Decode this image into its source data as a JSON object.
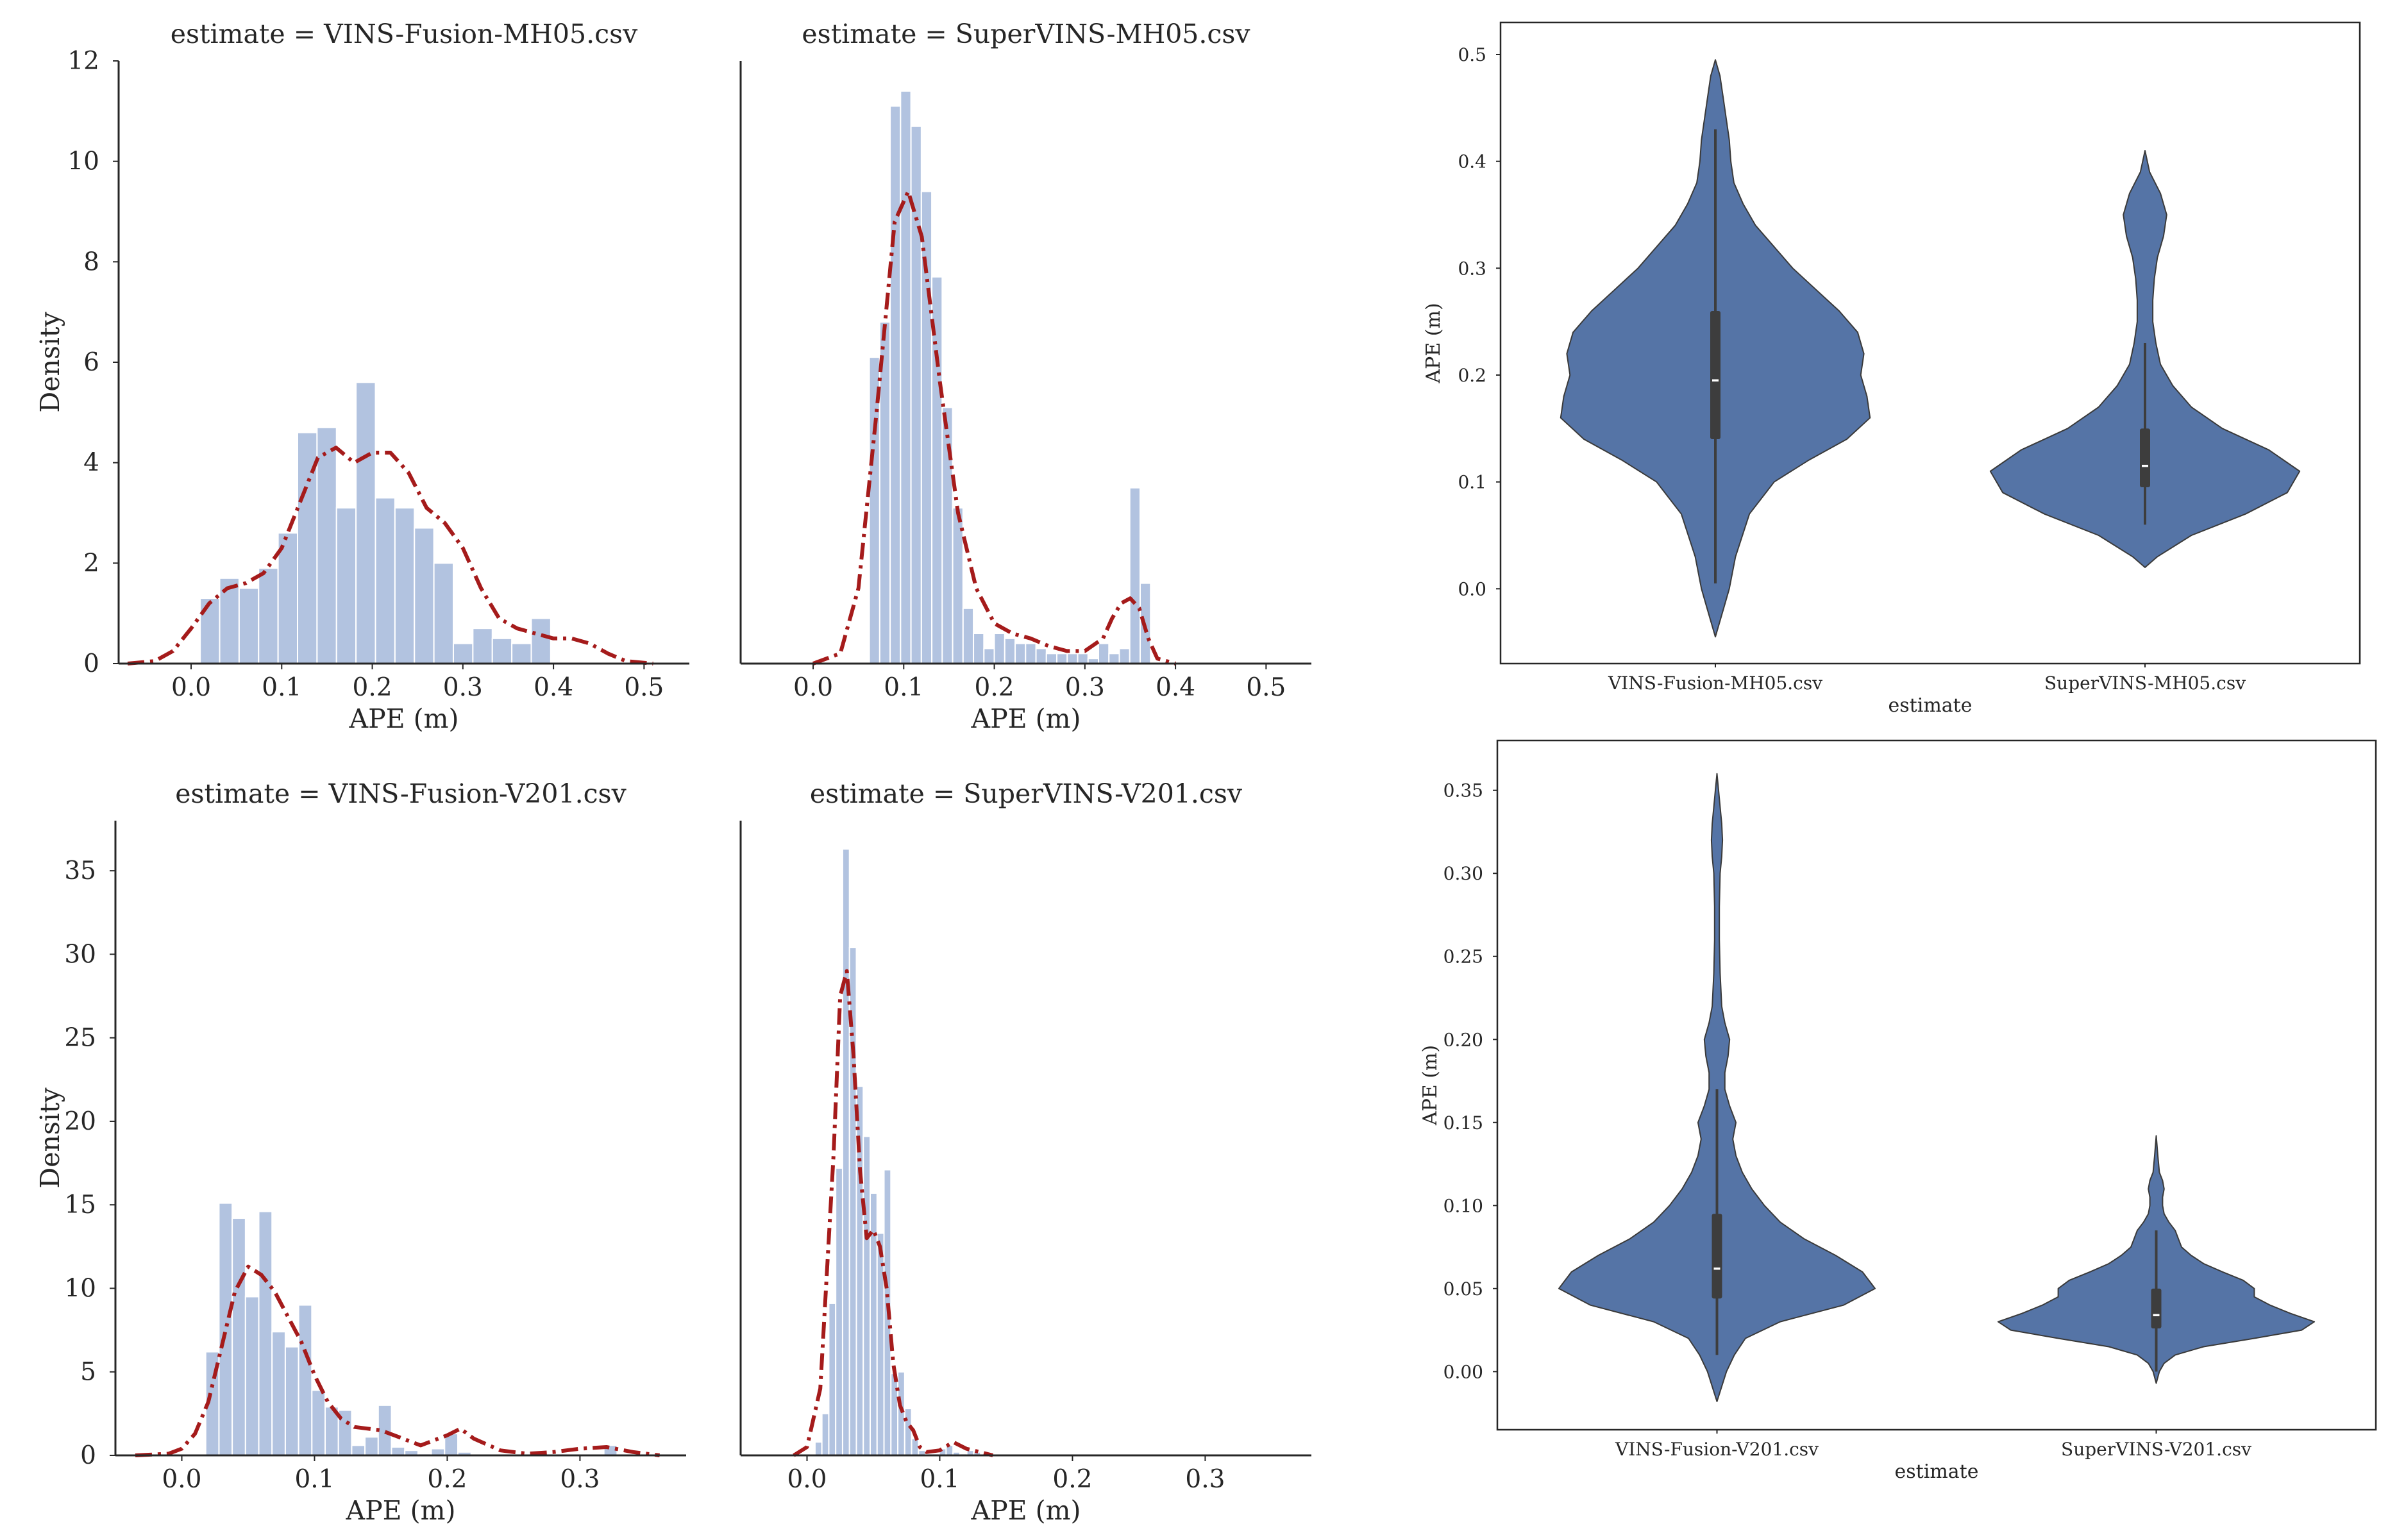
{
  "colors": {
    "hist_fill": "#b2c3e0",
    "hist_stroke": "#ffffff",
    "kde_line": "#a51b1b",
    "violin_fill": "#5574a6",
    "violin_edge": "#3a3a3a",
    "box": "#3d3d3d",
    "median": "#ffffff",
    "axis": "#262626"
  },
  "chart_data": [
    {
      "id": "hist-vins-mh05",
      "type": "bar",
      "subtype": "histogram-kde",
      "title": "estimate = VINS-Fusion-MH05.csv",
      "xlabel": "APE (m)",
      "ylabel": "Density",
      "xlim": [
        -0.08,
        0.55
      ],
      "ylim": [
        0,
        12
      ],
      "xticks": [
        0.0,
        0.1,
        0.2,
        0.3,
        0.4,
        0.5
      ],
      "xtick_labels": [
        "0.0",
        "0.1",
        "0.2",
        "0.3",
        "0.4",
        "0.5"
      ],
      "yticks": [
        0,
        2,
        4,
        6,
        8,
        10,
        12
      ],
      "ytick_labels": [
        "0",
        "2",
        "4",
        "6",
        "8",
        "10",
        "12"
      ],
      "bins": {
        "edges": [
          0.01,
          0.0315,
          0.053,
          0.0745,
          0.096,
          0.1175,
          0.139,
          0.1605,
          0.182,
          0.2035,
          0.225,
          0.2465,
          0.268,
          0.2895,
          0.311,
          0.3325,
          0.354,
          0.3755,
          0.397,
          0.4185,
          0.44,
          0.4615
        ],
        "heights": [
          1.3,
          1.7,
          1.5,
          1.9,
          2.6,
          4.6,
          4.7,
          3.1,
          5.6,
          3.3,
          3.1,
          2.7,
          2.0,
          0.4,
          0.7,
          0.5,
          0.4,
          0.9,
          0.0,
          0.0,
          0.0
        ]
      },
      "kde": {
        "x": [
          -0.07,
          -0.04,
          -0.02,
          0.0,
          0.02,
          0.04,
          0.06,
          0.08,
          0.1,
          0.12,
          0.14,
          0.16,
          0.18,
          0.2,
          0.22,
          0.24,
          0.26,
          0.28,
          0.3,
          0.32,
          0.34,
          0.36,
          0.38,
          0.4,
          0.42,
          0.44,
          0.46,
          0.48,
          0.51
        ],
        "y": [
          0.0,
          0.05,
          0.25,
          0.7,
          1.2,
          1.5,
          1.6,
          1.8,
          2.3,
          3.2,
          4.1,
          4.3,
          4.0,
          4.2,
          4.2,
          3.8,
          3.1,
          2.8,
          2.3,
          1.5,
          0.9,
          0.7,
          0.6,
          0.5,
          0.5,
          0.4,
          0.2,
          0.05,
          0.0
        ]
      }
    },
    {
      "id": "hist-supervins-mh05",
      "type": "bar",
      "subtype": "histogram-kde",
      "title": "estimate = SuperVINS-MH05.csv",
      "xlabel": "APE (m)",
      "ylabel": "",
      "xlim": [
        -0.08,
        0.55
      ],
      "ylim": [
        0,
        12
      ],
      "xticks": [
        0.0,
        0.1,
        0.2,
        0.3,
        0.4,
        0.5
      ],
      "xtick_labels": [
        "0.0",
        "0.1",
        "0.2",
        "0.3",
        "0.4",
        "0.5"
      ],
      "yticks": [],
      "ytick_labels": [],
      "bins": {
        "edges": [
          0.062,
          0.0735,
          0.085,
          0.0965,
          0.108,
          0.1195,
          0.131,
          0.1425,
          0.154,
          0.1655,
          0.177,
          0.1885,
          0.2,
          0.2115,
          0.223,
          0.2345,
          0.246,
          0.2575,
          0.269,
          0.2805,
          0.292,
          0.3035,
          0.315,
          0.3265,
          0.338,
          0.3495,
          0.361,
          0.3725
        ],
        "heights": [
          6.1,
          6.8,
          11.1,
          11.4,
          10.7,
          9.4,
          7.7,
          5.1,
          3.1,
          1.1,
          0.6,
          0.3,
          0.6,
          0.5,
          0.4,
          0.4,
          0.3,
          0.2,
          0.2,
          0.2,
          0.2,
          0.1,
          0.4,
          0.2,
          0.3,
          3.5,
          1.6
        ]
      },
      "kde": {
        "x": [
          0.0,
          0.03,
          0.05,
          0.07,
          0.09,
          0.105,
          0.12,
          0.14,
          0.16,
          0.18,
          0.2,
          0.22,
          0.24,
          0.26,
          0.28,
          0.3,
          0.32,
          0.33,
          0.34,
          0.35,
          0.36,
          0.37,
          0.38,
          0.4
        ],
        "y": [
          0.0,
          0.2,
          1.5,
          5.0,
          8.8,
          9.4,
          8.5,
          5.6,
          3.0,
          1.5,
          0.8,
          0.6,
          0.5,
          0.35,
          0.25,
          0.25,
          0.5,
          0.9,
          1.2,
          1.3,
          1.1,
          0.5,
          0.1,
          0.0
        ]
      }
    },
    {
      "id": "violin-mh05",
      "type": "violin",
      "title": "",
      "xlabel": "estimate",
      "ylabel": "APE (m)",
      "ylim": [
        -0.07,
        0.53
      ],
      "yticks": [
        0.0,
        0.1,
        0.2,
        0.3,
        0.4,
        0.5
      ],
      "ytick_labels": [
        "0.0",
        "0.1",
        "0.2",
        "0.3",
        "0.4",
        "0.5"
      ],
      "categories": [
        "VINS-Fusion-MH05.csv",
        "SuperVINS-MH05.csv"
      ],
      "violins": [
        {
          "name": "VINS-Fusion-MH05.csv",
          "y": [
            -0.045,
            -0.02,
            0.0,
            0.03,
            0.07,
            0.1,
            0.12,
            0.14,
            0.16,
            0.18,
            0.2,
            0.22,
            0.24,
            0.26,
            0.28,
            0.3,
            0.32,
            0.34,
            0.36,
            0.38,
            0.4,
            0.42,
            0.44,
            0.46,
            0.48,
            0.495
          ],
          "w": [
            0.0,
            0.05,
            0.09,
            0.13,
            0.22,
            0.38,
            0.6,
            0.85,
            1.0,
            0.98,
            0.94,
            0.96,
            0.92,
            0.8,
            0.65,
            0.5,
            0.38,
            0.26,
            0.18,
            0.12,
            0.1,
            0.09,
            0.07,
            0.05,
            0.03,
            0.0
          ]
        },
        {
          "name": "SuperVINS-MH05.csv",
          "y": [
            0.02,
            0.03,
            0.05,
            0.07,
            0.09,
            0.11,
            0.13,
            0.15,
            0.17,
            0.19,
            0.21,
            0.23,
            0.25,
            0.27,
            0.29,
            0.31,
            0.33,
            0.35,
            0.37,
            0.39,
            0.41
          ],
          "w": [
            0.0,
            0.08,
            0.3,
            0.65,
            0.92,
            1.0,
            0.8,
            0.5,
            0.3,
            0.18,
            0.1,
            0.07,
            0.05,
            0.05,
            0.06,
            0.08,
            0.12,
            0.14,
            0.1,
            0.03,
            0.0
          ]
        }
      ],
      "boxes": [
        {
          "q1": 0.14,
          "median": 0.195,
          "q3": 0.26,
          "whisker_low": 0.005,
          "whisker_high": 0.43
        },
        {
          "q1": 0.095,
          "median": 0.115,
          "q3": 0.15,
          "whisker_low": 0.06,
          "whisker_high": 0.23
        }
      ],
      "max_halfwidth_frac": 0.36
    },
    {
      "id": "hist-vins-v201",
      "type": "bar",
      "subtype": "histogram-kde",
      "title": "estimate = VINS-Fusion-V201.csv",
      "xlabel": "APE (m)",
      "ylabel": "Density",
      "xlim": [
        -0.05,
        0.38
      ],
      "ylim": [
        0,
        38
      ],
      "xticks": [
        0.0,
        0.1,
        0.2,
        0.3
      ],
      "xtick_labels": [
        "0.0",
        "0.1",
        "0.2",
        "0.3"
      ],
      "yticks": [
        0,
        5,
        10,
        15,
        20,
        25,
        30,
        35
      ],
      "ytick_labels": [
        "0",
        "5",
        "10",
        "15",
        "20",
        "25",
        "30",
        "35"
      ],
      "bins": {
        "edges": [
          0.018,
          0.028,
          0.038,
          0.048,
          0.058,
          0.068,
          0.078,
          0.088,
          0.098,
          0.108,
          0.118,
          0.128,
          0.138,
          0.148,
          0.158,
          0.168,
          0.178,
          0.188,
          0.198,
          0.208,
          0.218,
          0.228,
          0.238,
          0.248,
          0.258,
          0.268,
          0.278,
          0.288,
          0.298,
          0.308,
          0.318,
          0.328,
          0.338
        ],
        "heights": [
          6.2,
          15.1,
          14.2,
          9.5,
          14.6,
          7.4,
          6.5,
          9.0,
          3.9,
          2.9,
          2.7,
          0.6,
          1.1,
          3.0,
          0.5,
          0.3,
          0.1,
          0.4,
          1.3,
          0.2,
          0.0,
          0.0,
          0.0,
          0.0,
          0.0,
          0.0,
          0.0,
          0.0,
          0.0,
          0.0,
          0.6,
          0.0
        ]
      },
      "kde": {
        "x": [
          -0.035,
          -0.01,
          0.0,
          0.01,
          0.02,
          0.03,
          0.04,
          0.05,
          0.06,
          0.07,
          0.08,
          0.09,
          0.1,
          0.11,
          0.12,
          0.13,
          0.14,
          0.15,
          0.16,
          0.18,
          0.2,
          0.21,
          0.22,
          0.24,
          0.26,
          0.28,
          0.3,
          0.32,
          0.34,
          0.36
        ],
        "y": [
          0.0,
          0.1,
          0.4,
          1.3,
          3.2,
          6.5,
          9.8,
          11.3,
          10.8,
          9.8,
          8.3,
          6.8,
          4.8,
          3.2,
          2.2,
          1.7,
          1.6,
          1.5,
          1.2,
          0.6,
          1.2,
          1.6,
          1.0,
          0.3,
          0.1,
          0.2,
          0.4,
          0.5,
          0.2,
          0.0
        ]
      }
    },
    {
      "id": "hist-supervins-v201",
      "type": "bar",
      "subtype": "histogram-kde",
      "title": "estimate = SuperVINS-V201.csv",
      "xlabel": "APE (m)",
      "ylabel": "",
      "xlim": [
        -0.05,
        0.38
      ],
      "ylim": [
        0,
        38
      ],
      "xticks": [
        0.0,
        0.1,
        0.2,
        0.3
      ],
      "xtick_labels": [
        "0.0",
        "0.1",
        "0.2",
        "0.3"
      ],
      "yticks": [],
      "ytick_labels": [],
      "bins": {
        "edges": [
          0.006,
          0.0112,
          0.0164,
          0.0216,
          0.0268,
          0.032,
          0.0372,
          0.0424,
          0.0476,
          0.0528,
          0.058,
          0.0632,
          0.0684,
          0.0736,
          0.0788,
          0.084,
          0.0892,
          0.0944,
          0.0996,
          0.1048,
          0.11,
          0.1152,
          0.1204,
          0.1256,
          0.1308,
          0.136
        ],
        "heights": [
          0.8,
          2.5,
          9.1,
          17.2,
          36.3,
          30.4,
          22.1,
          19.1,
          15.7,
          13.3,
          17.1,
          4.9,
          5.0,
          2.8,
          1.0,
          0.3,
          0.1,
          0.1,
          0.4,
          0.6,
          0.2,
          0.1,
          0.3,
          0.2,
          0.0
        ]
      },
      "kde": {
        "x": [
          -0.01,
          0.0,
          0.01,
          0.02,
          0.025,
          0.03,
          0.035,
          0.04,
          0.045,
          0.05,
          0.055,
          0.06,
          0.065,
          0.07,
          0.075,
          0.08,
          0.085,
          0.09,
          0.1,
          0.11,
          0.12,
          0.13,
          0.14
        ],
        "y": [
          0.0,
          0.5,
          4.0,
          18.0,
          27.5,
          29.0,
          24.0,
          17.0,
          13.0,
          13.5,
          12.5,
          10.0,
          5.5,
          3.0,
          2.0,
          1.5,
          0.5,
          0.2,
          0.3,
          0.8,
          0.4,
          0.2,
          0.0
        ]
      }
    },
    {
      "id": "violin-v201",
      "type": "violin",
      "title": "",
      "xlabel": "estimate",
      "ylabel": "APE (m)",
      "ylim": [
        -0.035,
        0.38
      ],
      "yticks": [
        0.0,
        0.05,
        0.1,
        0.15,
        0.2,
        0.25,
        0.3,
        0.35
      ],
      "ytick_labels": [
        "0.00",
        "0.05",
        "0.10",
        "0.15",
        "0.20",
        "0.25",
        "0.30",
        "0.35"
      ],
      "categories": [
        "VINS-Fusion-V201.csv",
        "SuperVINS-V201.csv"
      ],
      "violins": [
        {
          "name": "VINS-Fusion-V201.csv",
          "y": [
            -0.018,
            0.0,
            0.01,
            0.02,
            0.03,
            0.04,
            0.05,
            0.06,
            0.07,
            0.08,
            0.09,
            0.1,
            0.11,
            0.12,
            0.13,
            0.14,
            0.15,
            0.16,
            0.17,
            0.18,
            0.19,
            0.2,
            0.21,
            0.22,
            0.24,
            0.26,
            0.28,
            0.3,
            0.31,
            0.32,
            0.33,
            0.34,
            0.35,
            0.36
          ],
          "w": [
            0.0,
            0.06,
            0.11,
            0.18,
            0.4,
            0.8,
            1.0,
            0.92,
            0.75,
            0.55,
            0.4,
            0.3,
            0.22,
            0.16,
            0.12,
            0.1,
            0.12,
            0.08,
            0.05,
            0.05,
            0.07,
            0.08,
            0.05,
            0.03,
            0.02,
            0.015,
            0.015,
            0.02,
            0.03,
            0.035,
            0.03,
            0.02,
            0.01,
            0.0
          ]
        },
        {
          "name": "SuperVINS-V201.csv",
          "y": [
            -0.007,
            0.0,
            0.005,
            0.01,
            0.015,
            0.02,
            0.025,
            0.03,
            0.035,
            0.04,
            0.045,
            0.05,
            0.055,
            0.06,
            0.065,
            0.07,
            0.075,
            0.08,
            0.085,
            0.09,
            0.095,
            0.1,
            0.105,
            0.11,
            0.115,
            0.12,
            0.13,
            0.142
          ],
          "w": [
            0.0,
            0.02,
            0.05,
            0.12,
            0.3,
            0.62,
            0.92,
            1.0,
            0.85,
            0.72,
            0.62,
            0.62,
            0.55,
            0.42,
            0.3,
            0.22,
            0.16,
            0.14,
            0.12,
            0.08,
            0.05,
            0.04,
            0.04,
            0.05,
            0.04,
            0.02,
            0.01,
            0.0
          ]
        }
      ],
      "boxes": [
        {
          "q1": 0.044,
          "median": 0.062,
          "q3": 0.095,
          "whisker_low": 0.01,
          "whisker_high": 0.17
        },
        {
          "q1": 0.026,
          "median": 0.034,
          "q3": 0.05,
          "whisker_low": 0.0,
          "whisker_high": 0.085
        }
      ],
      "max_halfwidth_frac": 0.36
    }
  ]
}
